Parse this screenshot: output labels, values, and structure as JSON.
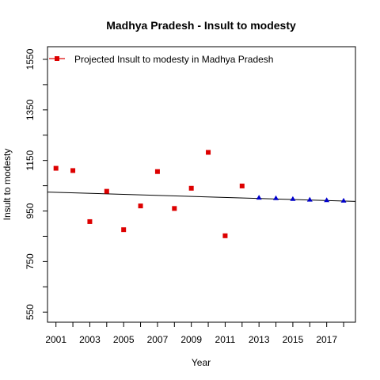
{
  "chart_data": {
    "type": "scatter",
    "title": "Madhya Pradesh  -  Insult to modesty",
    "xlabel": "Year",
    "ylabel": "Insult to modesty",
    "xlim": [
      2000.5,
      2018.7
    ],
    "ylim": [
      510,
      1600
    ],
    "x_ticks": [
      2001,
      2002,
      2003,
      2004,
      2005,
      2006,
      2007,
      2008,
      2009,
      2010,
      2011,
      2012,
      2013,
      2014,
      2015,
      2016,
      2017,
      2018
    ],
    "x_tick_labels": [
      "2001",
      "2003",
      "2005",
      "2007",
      "2009",
      "2011",
      "2013",
      "2015",
      "2017"
    ],
    "y_ticks": [
      550,
      650,
      750,
      850,
      950,
      1050,
      1150,
      1250,
      1350,
      1450,
      1550
    ],
    "y_tick_labels": [
      "550",
      "750",
      "950",
      "1150",
      "1350",
      "1550"
    ],
    "legend": {
      "placement": "top-left",
      "label": "Projected  Insult to modesty  in  Madhya Pradesh"
    },
    "series": [
      {
        "kind": "observed",
        "marker": "square",
        "color": "#dd0000",
        "x": [
          2001,
          2002,
          2003,
          2004,
          2005,
          2006,
          2007,
          2008,
          2009,
          2010,
          2011,
          2012
        ],
        "y": [
          1119,
          1110,
          908,
          1028,
          876,
          970,
          1106,
          960,
          1040,
          1182,
          852,
          1049
        ]
      },
      {
        "kind": "projected",
        "marker": "triangle",
        "color": "#0000cc",
        "x": [
          2013,
          2014,
          2015,
          2016,
          2017,
          2018
        ],
        "y": [
          1003,
          1001,
          998,
          995,
          993,
          991
        ]
      }
    ],
    "trend_line": {
      "color": "#000000",
      "x": [
        2000.5,
        2018.7
      ],
      "y": [
        1025,
        988
      ]
    }
  }
}
